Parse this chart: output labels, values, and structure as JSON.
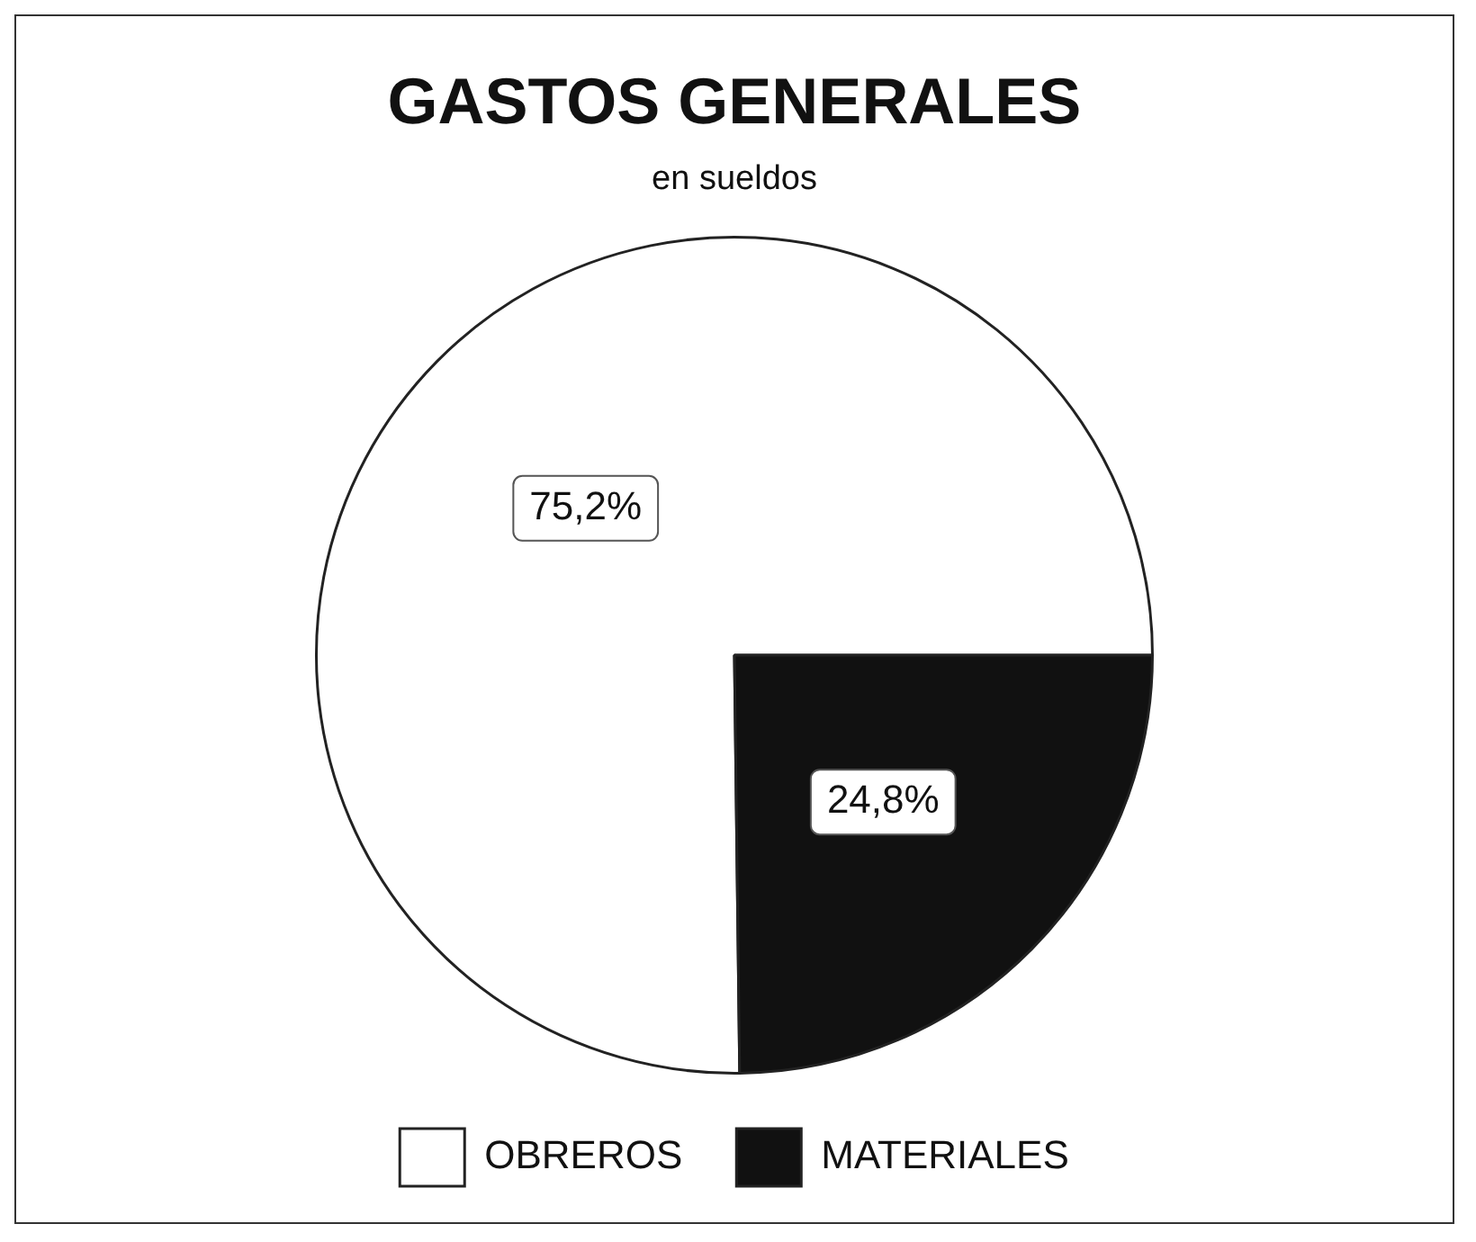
{
  "chart_data": {
    "type": "pie",
    "title": "GASTOS GENERALES",
    "subtitle": "en sueldos",
    "categories": [
      "OBREROS",
      "MATERIALES"
    ],
    "values": [
      75.2,
      24.8
    ],
    "colors": [
      "#ffffff",
      "#111111"
    ],
    "value_labels": [
      "75,2%",
      "24,8%"
    ],
    "legend": "bottom"
  }
}
